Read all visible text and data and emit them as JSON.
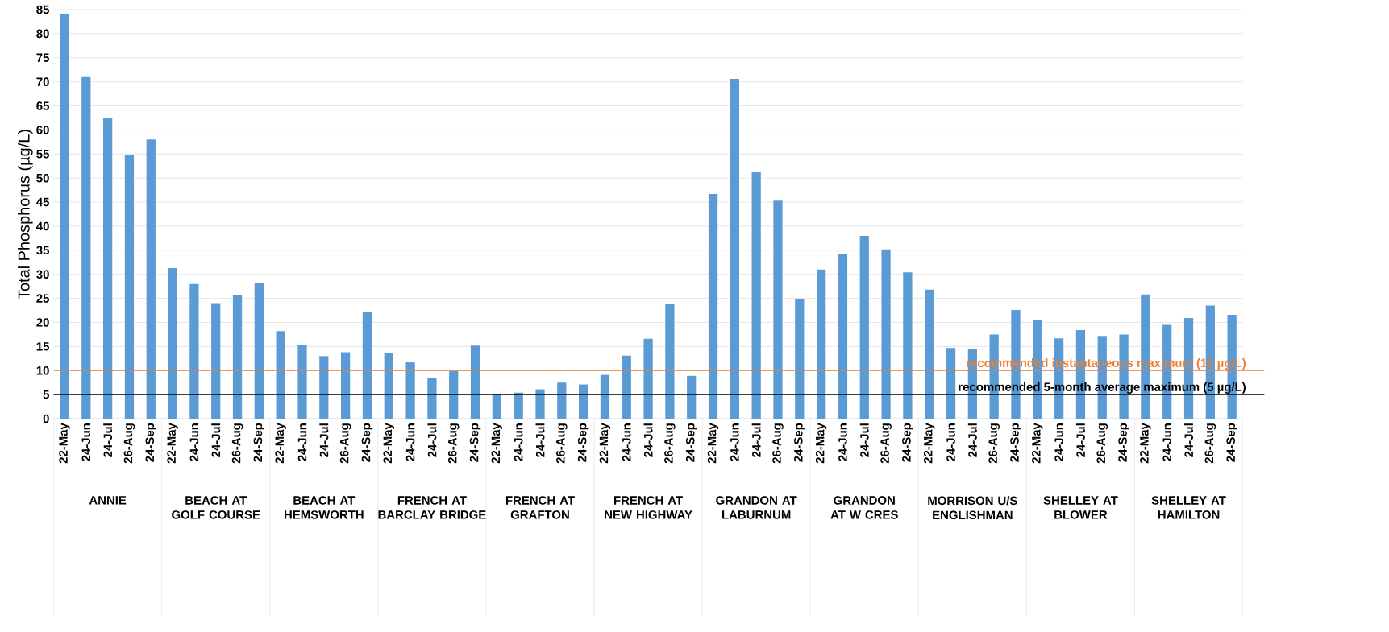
{
  "chart_data": {
    "type": "bar",
    "ylabel": "Total Phosphorus (µg/L)",
    "categories": [
      "22-May",
      "24-Jun",
      "24-Jul",
      "26-Aug",
      "24-Sep",
      "22-May",
      "24-Jun",
      "24-Jul",
      "26-Aug",
      "24-Sep",
      "22-May",
      "24-Jun",
      "24-Jul",
      "26-Aug",
      "24-Sep",
      "22-May",
      "24-Jun",
      "24-Jul",
      "26-Aug",
      "24-Sep",
      "22-May",
      "24-Jun",
      "24-Jul",
      "26-Aug",
      "24-Sep",
      "22-May",
      "24-Jun",
      "24-Jul",
      "26-Aug",
      "24-Sep",
      "22-May",
      "24-Jun",
      "24-Jul",
      "26-Aug",
      "24-Sep",
      "22-May",
      "24-Jun",
      "24-Jul",
      "26-Aug",
      "24-Sep",
      "22-May",
      "24-Jun",
      "24-Jul",
      "26-Aug",
      "24-Sep",
      "22-May",
      "24-Jun",
      "24-Jul",
      "26-Aug",
      "24-Sep",
      "22-May",
      "24-Jun",
      "24-Jul",
      "26-Aug",
      "24-Sep"
    ],
    "values": [
      84,
      71,
      62.5,
      54.8,
      58,
      31.3,
      28,
      24,
      25.7,
      28.2,
      18.2,
      15.4,
      13,
      13.8,
      22.2,
      13.6,
      11.7,
      8.4,
      9.9,
      15.2,
      5.1,
      5.4,
      6.1,
      7.5,
      7.1,
      9.1,
      13.1,
      16.6,
      23.8,
      8.9,
      46.7,
      70.6,
      51.2,
      45.3,
      24.8,
      31,
      34.3,
      38,
      35.2,
      30.4,
      26.8,
      14.7,
      14.4,
      17.5,
      22.6,
      20.5,
      16.7,
      18.4,
      17.2,
      17.5,
      25.8,
      19.5,
      20.9,
      23.5,
      21.6
    ],
    "color": "#5b9bd5",
    "ylim": [
      0,
      85
    ],
    "yticks": [
      0,
      5,
      10,
      15,
      20,
      25,
      30,
      35,
      40,
      45,
      50,
      55,
      60,
      65,
      70,
      75,
      80,
      85
    ],
    "grid": "y",
    "ref_lines": [
      {
        "axis": "y",
        "value": 10,
        "label": "recommended instantaneous maximum (10 µg/L)",
        "color": "#ed7d31"
      },
      {
        "axis": "y",
        "value": 5,
        "label": "recommended 5-month average maximum (5 µg/L)",
        "color": "#000000"
      }
    ],
    "annotations": [
      "ANNIE",
      "BEACH AT GOLF COURSE",
      "BEACH AT HEMSWORTH",
      "FRENCH AT BARCLAY BRIDGE",
      "FRENCH AT GRAFTON",
      "FRENCH AT NEW HIGHWAY",
      "GRANDON AT LABURNUM",
      "GRANDON AT W CRES",
      "MORRISON U/S ENGLISHMAN",
      "SHELLEY AT BLOWER",
      "SHELLEY AT HAMILTON"
    ]
  }
}
